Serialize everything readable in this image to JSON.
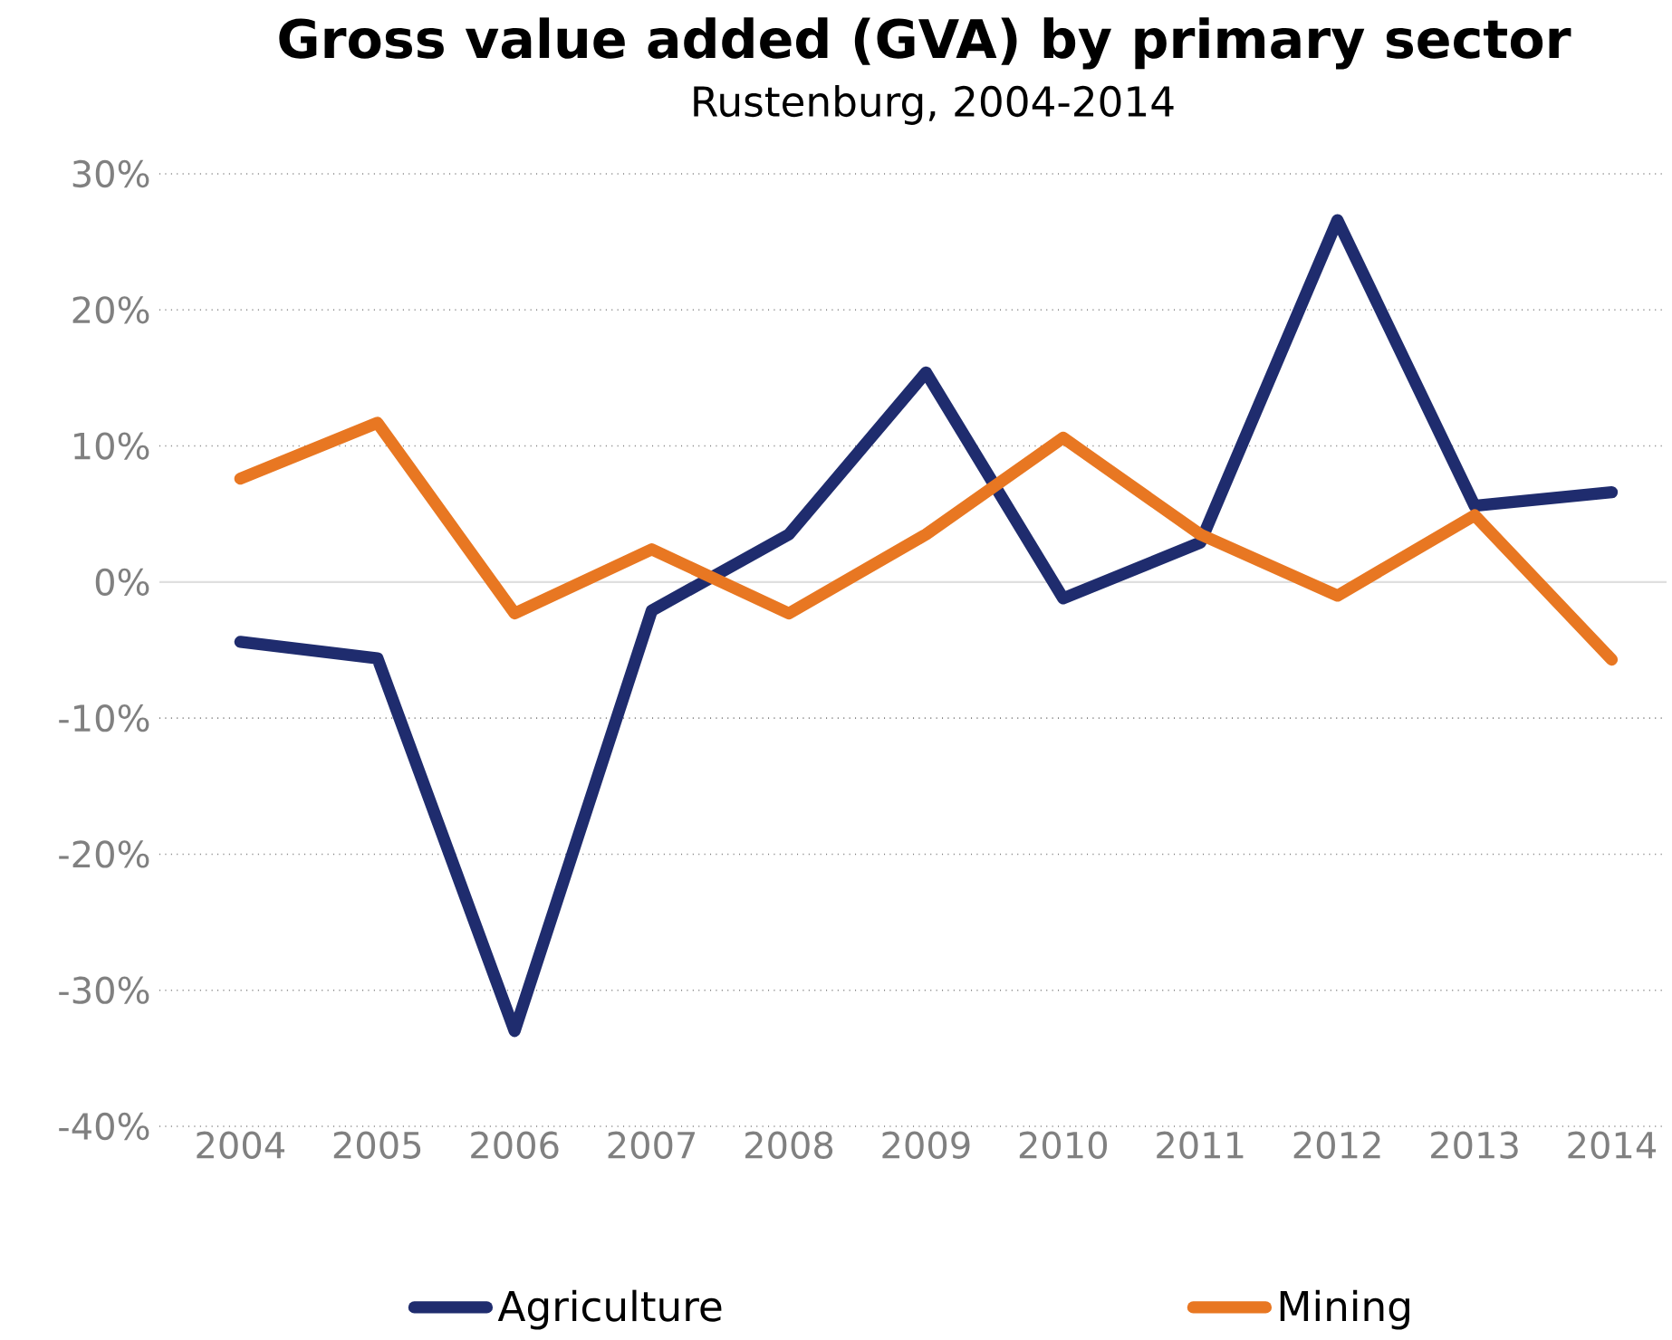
{
  "chart_data": {
    "type": "line",
    "title": "Gross value added (GVA) by primary sector",
    "subtitle": "Rustenburg, 2004-2014",
    "categories": [
      "2004",
      "2005",
      "2006",
      "2007",
      "2008",
      "2009",
      "2010",
      "2011",
      "2012",
      "2013",
      "2014"
    ],
    "series": [
      {
        "name": "Agriculture",
        "color": "#1f2c6e",
        "values": [
          -4.4,
          -5.6,
          -33,
          -2.1,
          3.5,
          15.4,
          -1.2,
          2.9,
          26.6,
          5.6,
          6.6
        ]
      },
      {
        "name": "Mining",
        "color": "#e87722",
        "values": [
          7.6,
          11.7,
          -2.3,
          2.4,
          -2.3,
          3.5,
          10.6,
          3.5,
          -1,
          4.9,
          -5.7
        ]
      }
    ],
    "ylim": [
      -40,
      30
    ],
    "yticks": [
      {
        "value": -40,
        "label": "-40%"
      },
      {
        "value": -30,
        "label": "-30%"
      },
      {
        "value": -20,
        "label": "-20%"
      },
      {
        "value": -10,
        "label": "-10%"
      },
      {
        "value": 0,
        "label": "0%"
      },
      {
        "value": 10,
        "label": "10%"
      },
      {
        "value": 20,
        "label": "20%"
      },
      {
        "value": 30,
        "label": "30%"
      }
    ],
    "grid": "y",
    "legend": "bottom",
    "line_style": "solid"
  }
}
